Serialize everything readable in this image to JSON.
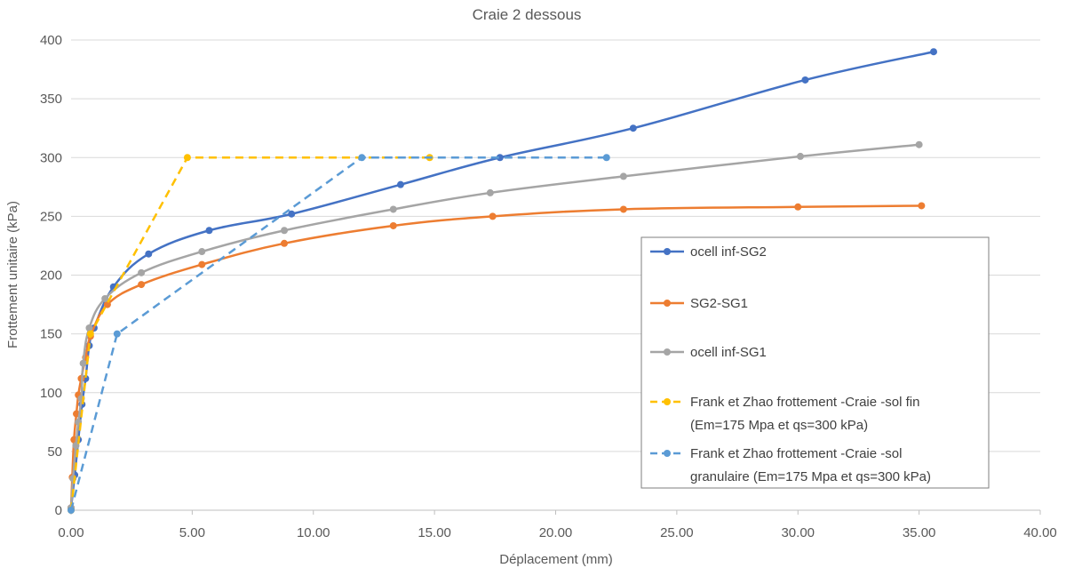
{
  "chart_data": {
    "type": "line",
    "title": "Craie 2 dessous",
    "xlabel": "Déplacement (mm)",
    "ylabel": "Frottement unitaire (kPa)",
    "xlim": [
      0,
      40
    ],
    "ylim": [
      0,
      400
    ],
    "x_ticks": [
      "0.00",
      "5.00",
      "10.00",
      "15.00",
      "20.00",
      "25.00",
      "30.00",
      "35.00",
      "40.00"
    ],
    "y_ticks": [
      "0",
      "50",
      "100",
      "150",
      "200",
      "250",
      "300",
      "350",
      "400"
    ],
    "grid": "horizontal",
    "legend_position": "right",
    "series": [
      {
        "name": "ocell inf-SG2",
        "color": "#4472C4",
        "style": "solid-smooth",
        "x": [
          0.0,
          0.15,
          0.3,
          0.45,
          0.6,
          0.75,
          0.95,
          1.75,
          3.2,
          5.7,
          9.1,
          13.6,
          17.7,
          23.2,
          30.3,
          35.6
        ],
        "y": [
          2,
          30,
          60,
          90,
          112,
          140,
          155,
          190,
          218,
          238,
          252,
          277,
          300,
          325,
          366,
          390
        ]
      },
      {
        "name": "SG2-SG1",
        "color": "#ED7D31",
        "style": "solid-smooth",
        "x": [
          0.0,
          0.05,
          0.12,
          0.22,
          0.3,
          0.42,
          0.6,
          0.8,
          1.5,
          2.9,
          5.4,
          8.8,
          13.3,
          17.4,
          22.8,
          30.0,
          35.1
        ],
        "y": [
          2,
          28,
          60,
          82,
          98,
          112,
          130,
          148,
          175,
          192,
          209,
          227,
          242,
          250,
          256,
          258,
          259
        ]
      },
      {
        "name": "ocell inf-SG1",
        "color": "#A5A5A5",
        "style": "solid-smooth",
        "x": [
          0.0,
          0.08,
          0.2,
          0.3,
          0.42,
          0.5,
          0.75,
          1.4,
          2.9,
          5.4,
          8.8,
          13.3,
          17.3,
          22.8,
          30.1,
          35.0
        ],
        "y": [
          2,
          27,
          55,
          75,
          95,
          125,
          155,
          180,
          202,
          220,
          238,
          256,
          270,
          284,
          301,
          311
        ]
      },
      {
        "name": "Frank et Zhao frottement -Craie -sol fin (Em=175 Mpa et qs=300 kPa)",
        "label_lines": [
          "Frank et Zhao frottement -Craie -sol fin",
          "(Em=175 Mpa et qs=300 kPa)"
        ],
        "color": "#FFC000",
        "style": "dashed",
        "x": [
          0.0,
          0.8,
          4.8,
          14.8
        ],
        "y": [
          0,
          150,
          300,
          300
        ]
      },
      {
        "name": "Frank et Zhao frottement -Craie -sol granulaire (Em=175 Mpa et qs=300 kPa)",
        "label_lines": [
          "Frank et Zhao frottement -Craie -sol",
          "granulaire (Em=175 Mpa et qs=300 kPa)"
        ],
        "color": "#5B9BD5",
        "style": "dashed",
        "x": [
          0.0,
          1.9,
          12.0,
          22.1
        ],
        "y": [
          0,
          150,
          300,
          300
        ]
      }
    ]
  }
}
